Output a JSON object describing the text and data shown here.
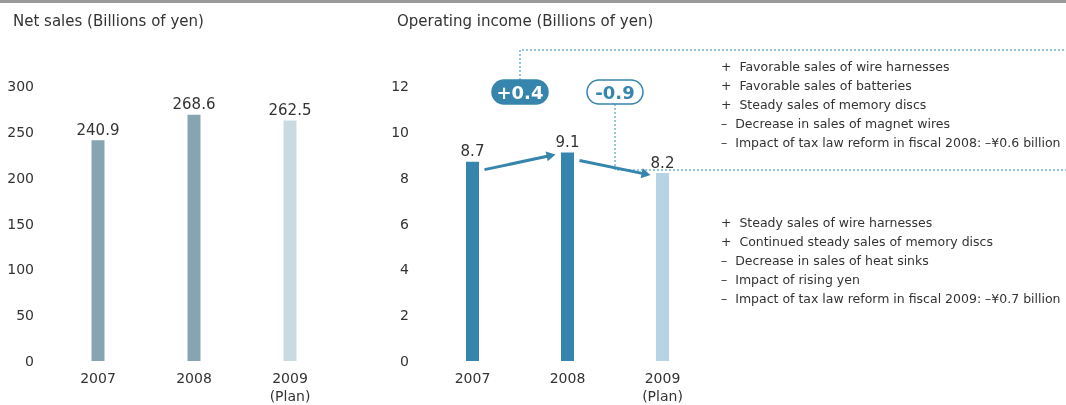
{
  "chart_data": [
    {
      "type": "bar",
      "title": "Net sales (Billions of yen)",
      "categories": [
        "2007",
        "2008",
        "2009\n(Plan)"
      ],
      "values": [
        240.9,
        268.6,
        262.5
      ],
      "colors": [
        "#87a5b0",
        "#87a5b0",
        "#c9dbe1"
      ],
      "ylim": [
        0,
        300
      ],
      "yticks": [
        0,
        50,
        100,
        150,
        200,
        250,
        300
      ],
      "data_labels": true,
      "grid": false
    },
    {
      "type": "bar",
      "title": "Operating income (Billions of yen)",
      "categories": [
        "2007",
        "2008",
        "2009\n(Plan)"
      ],
      "values": [
        8.7,
        9.1,
        8.2
      ],
      "colors": [
        "#3685ad",
        "#3685ad",
        "#b6d4e3"
      ],
      "ylim": [
        0,
        12
      ],
      "yticks": [
        0,
        2,
        4,
        6,
        8,
        10,
        12
      ],
      "data_labels": true,
      "grid": false,
      "annotations": [
        "+0.4",
        "-0.9",
        "+  Favorable sales of wire harnesses",
        "+  Favorable sales of batteries",
        "+  Steady sales of memory discs",
        "–  Decrease in sales of magnet wires",
        "–  Impact of tax law reform in fiscal 2008: –¥0.6 billion",
        "+  Steady sales of wire harnesses",
        "+  Continued steady sales of memory discs",
        "–  Decrease in sales of heat sinks",
        "–  Impact of rising yen",
        "–  Impact of tax law reform in fiscal 2009: –¥0.7 billion"
      ]
    }
  ]
}
